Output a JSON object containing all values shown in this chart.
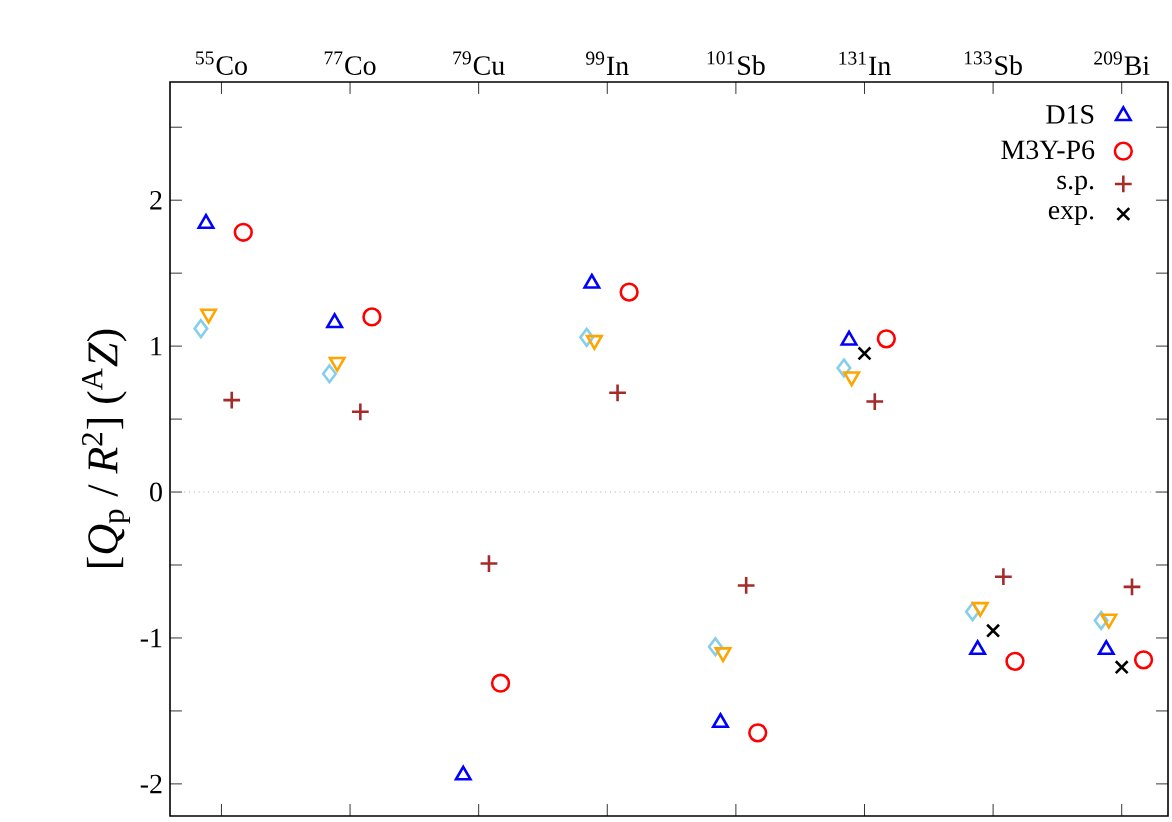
{
  "chart_data": {
    "type": "scatter",
    "ylabel": "[*Q*$_{p}$ / *R*$^{2}$] ($^{A}$*Z*)",
    "categories": [
      "$^{55}$Co",
      "$^{77}$Co",
      "$^{79}$Cu",
      "$^{99}$In",
      "$^{101}$Sb",
      "$^{131}$In",
      "$^{133}$Sb",
      "$^{209}$Bi"
    ],
    "ylim": [
      -2.22,
      2.81
    ],
    "yticks": [
      -2,
      {
        "value": -1.5,
        "label": null
      },
      -1,
      {
        "value": -0.5,
        "label": null
      },
      0,
      {
        "value": 0.5,
        "label": null
      },
      1,
      {
        "value": 1.5,
        "label": null
      },
      2,
      {
        "value": 2.5,
        "label": null
      }
    ],
    "series": [
      {
        "color": "#87ceeb",
        "marker": "diamond",
        "values": [
          1.12,
          0.81,
          null,
          1.06,
          -1.06,
          0.85,
          -0.82,
          -0.88
        ]
      },
      {
        "color": "#ffa500",
        "marker": "triangle-down",
        "values": [
          1.22,
          0.89,
          null,
          1.04,
          -1.1,
          0.79,
          -0.79,
          -0.87
        ]
      },
      {
        "name": "D1S",
        "color": "#0000ff",
        "marker": "triangle",
        "values": [
          1.84,
          1.16,
          -1.94,
          1.43,
          -1.58,
          1.04,
          -1.08,
          -1.08
        ]
      },
      {
        "name": "M3Y-P6",
        "color": "#ff0000",
        "marker": "circle",
        "values": [
          1.78,
          1.2,
          -1.31,
          1.37,
          -1.65,
          1.05,
          -1.16,
          -1.15
        ]
      },
      {
        "name": "s.p.",
        "color": "#a52a2a",
        "marker": "plus",
        "values": [
          0.63,
          0.55,
          -0.49,
          0.68,
          -0.64,
          0.62,
          -0.58,
          -0.65
        ]
      },
      {
        "name": "exp.",
        "color": "#000000",
        "marker": "cross",
        "values": [
          null,
          null,
          null,
          null,
          null,
          0.95,
          -0.95,
          -1.2
        ]
      }
    ],
    "ref_lines": [
      {
        "axis": "y",
        "value": 0,
        "line_style": "dotted",
        "color": "#808080"
      }
    ],
    "legend": "top right",
    "grid": false
  }
}
